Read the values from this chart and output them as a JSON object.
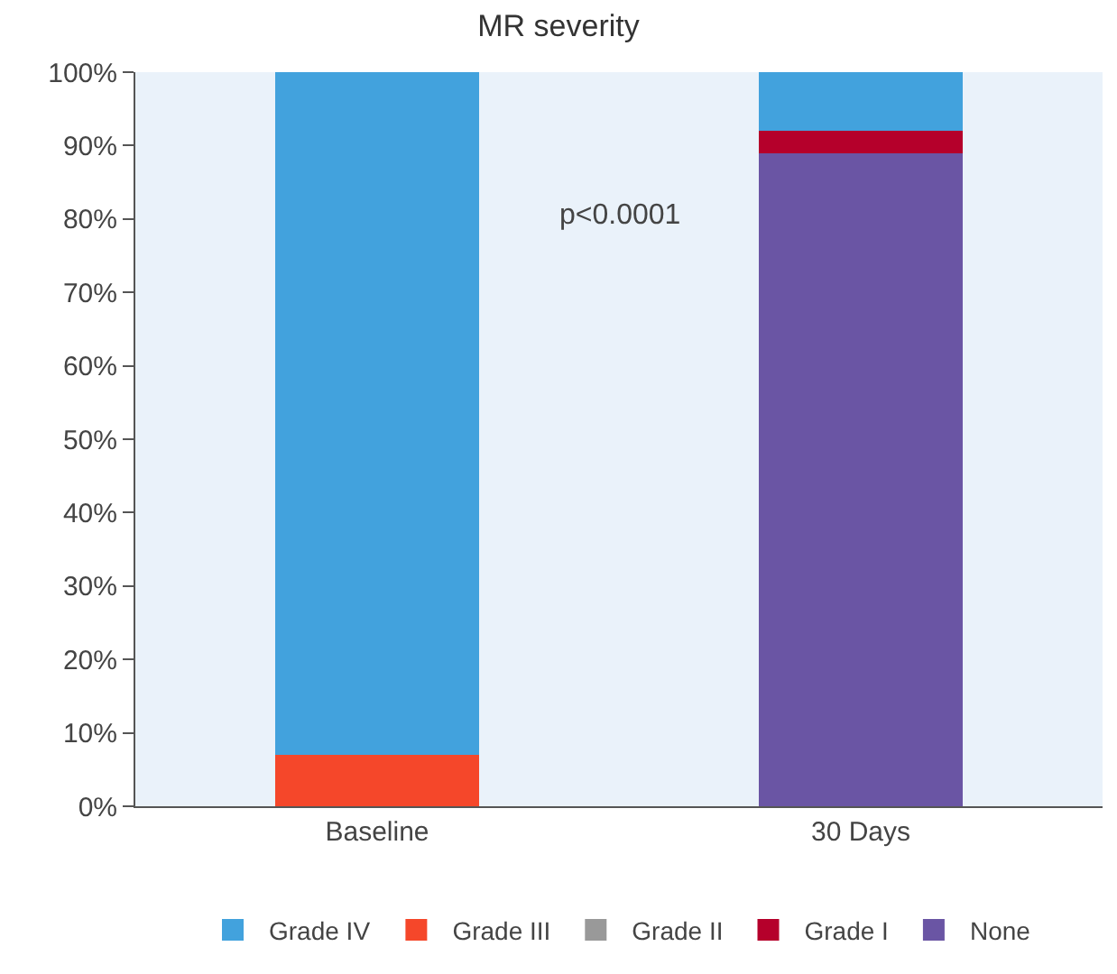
{
  "chart_data": {
    "type": "bar",
    "title": "MR severity",
    "stacked": true,
    "categories": [
      "Baseline",
      "30 Days"
    ],
    "series": [
      {
        "name": "None",
        "color": "#6a55a4",
        "values": [
          0,
          89
        ]
      },
      {
        "name": "Grade I",
        "color": "#b5002b",
        "values": [
          0,
          3
        ]
      },
      {
        "name": "Grade II",
        "color": "#999999",
        "values": [
          0,
          0
        ]
      },
      {
        "name": "Grade III",
        "color": "#f5472a",
        "values": [
          7,
          0
        ]
      },
      {
        "name": "Grade IV",
        "color": "#42a2dd",
        "values": [
          93,
          8
        ]
      }
    ],
    "ylim": [
      0,
      100
    ],
    "yticks": [
      {
        "value": 0,
        "label": "0%"
      },
      {
        "value": 10,
        "label": "10%"
      },
      {
        "value": 20,
        "label": "20%"
      },
      {
        "value": 30,
        "label": "30%"
      },
      {
        "value": 40,
        "label": "40%"
      },
      {
        "value": 50,
        "label": "50%"
      },
      {
        "value": 60,
        "label": "60%"
      },
      {
        "value": 70,
        "label": "70%"
      },
      {
        "value": 80,
        "label": "80%"
      },
      {
        "value": 90,
        "label": "90%"
      },
      {
        "value": 100,
        "label": "100%"
      }
    ],
    "annotations": [
      "p<0.0001"
    ],
    "grid": false,
    "legend": "bottom"
  }
}
